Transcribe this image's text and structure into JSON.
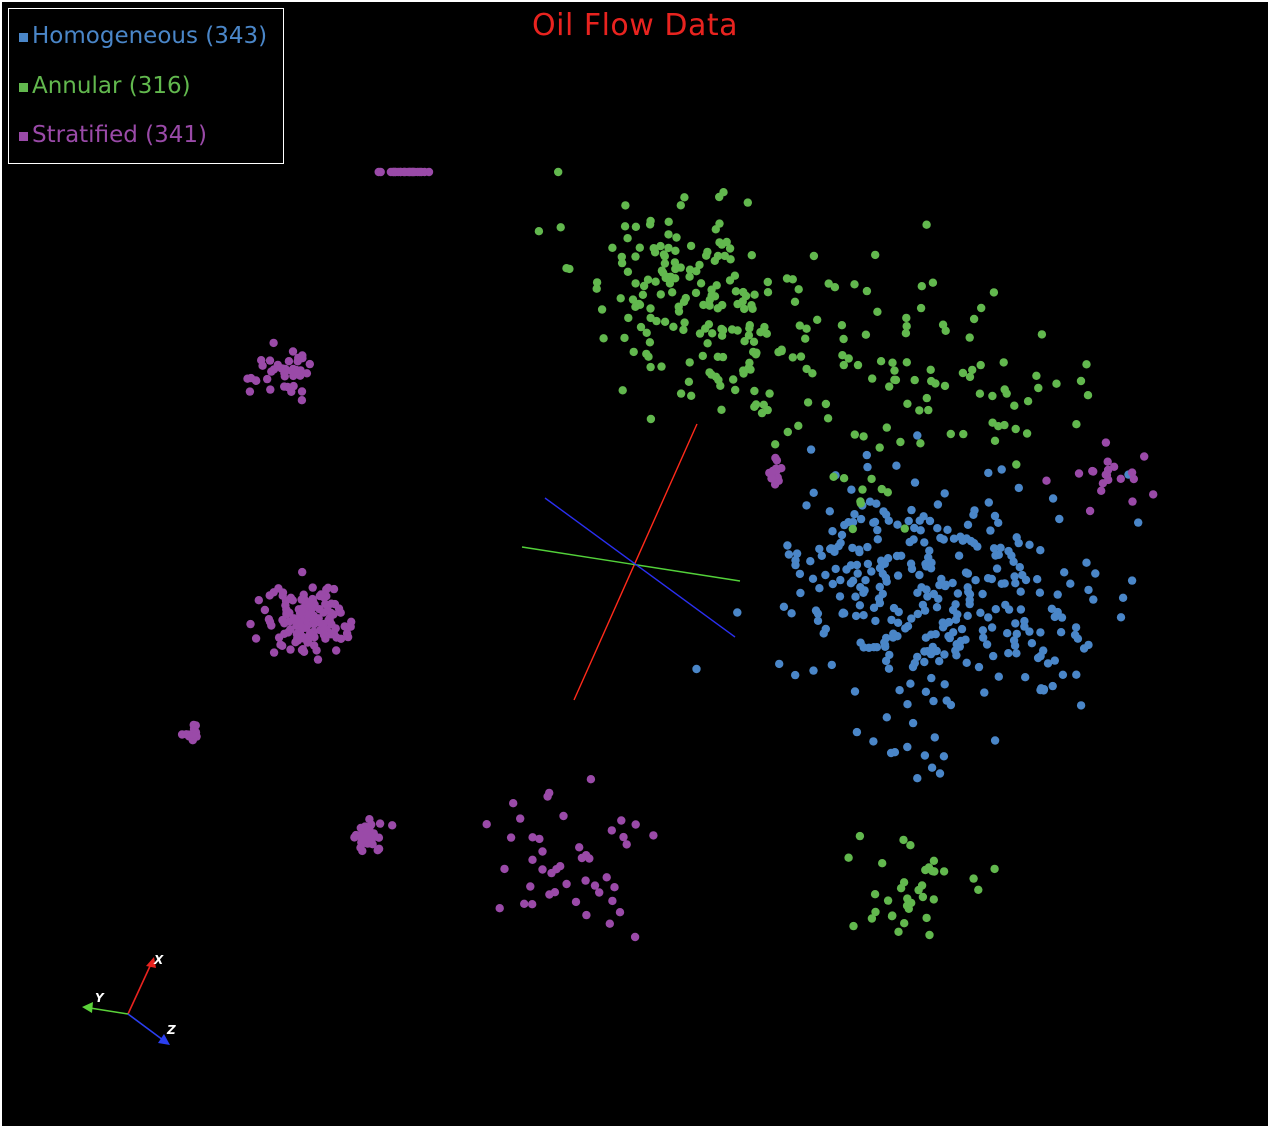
{
  "chart_data": {
    "type": "scatter",
    "title": "Oil Flow Data",
    "projection": "3d",
    "background": "#000000",
    "title_color": "#e8231f",
    "legend_placement": "top-left",
    "orientation_axes": {
      "labels": [
        "X",
        "Y",
        "Z"
      ],
      "colors": [
        "#e8231f",
        "#5bd23a",
        "#2b3ff0"
      ]
    },
    "center_axes_colors": [
      "#ff2a1a",
      "#53d13a",
      "#2a2ff0"
    ],
    "series": [
      {
        "name": "Homogeneous",
        "count": 343,
        "legend_label": "Homogeneous (343)",
        "color": "#4a86c8",
        "clusters": [
          {
            "x": 0.74,
            "y": 0.53,
            "spread": 0.055,
            "n": 260
          },
          {
            "x": 0.67,
            "y": 0.5,
            "spread": 0.03,
            "n": 50
          },
          {
            "x": 0.83,
            "y": 0.54,
            "spread": 0.03,
            "n": 25
          },
          {
            "x": 0.72,
            "y": 0.67,
            "spread": 0.02,
            "n": 8
          }
        ]
      },
      {
        "name": "Annular",
        "count": 316,
        "legend_label": "Annular (316)",
        "color": "#62b84e",
        "clusters": [
          {
            "x": 0.53,
            "y": 0.24,
            "spread": 0.04,
            "n": 110
          },
          {
            "x": 0.59,
            "y": 0.31,
            "spread": 0.035,
            "n": 80
          },
          {
            "x": 0.7,
            "y": 0.31,
            "spread": 0.05,
            "n": 60
          },
          {
            "x": 0.8,
            "y": 0.35,
            "spread": 0.03,
            "n": 22
          },
          {
            "x": 0.72,
            "y": 0.79,
            "spread": 0.03,
            "n": 35
          },
          {
            "x": 0.69,
            "y": 0.45,
            "spread": 0.02,
            "n": 9
          }
        ]
      },
      {
        "name": "Stratified",
        "count": 341,
        "legend_label": "Stratified (341)",
        "color": "#9a4aa8",
        "clusters": [
          {
            "x": 0.24,
            "y": 0.55,
            "spread": 0.015,
            "n": 150
          },
          {
            "x": 0.22,
            "y": 0.33,
            "spread": 0.012,
            "n": 40
          },
          {
            "x": 0.32,
            "y": 0.1,
            "spread": 0.01,
            "n": 25
          },
          {
            "x": 0.29,
            "y": 0.74,
            "spread": 0.008,
            "n": 35
          },
          {
            "x": 0.45,
            "y": 0.77,
            "spread": 0.03,
            "n": 45
          },
          {
            "x": 0.15,
            "y": 0.65,
            "spread": 0.004,
            "n": 12
          },
          {
            "x": 0.87,
            "y": 0.42,
            "spread": 0.015,
            "n": 20
          },
          {
            "x": 0.61,
            "y": 0.42,
            "spread": 0.006,
            "n": 14
          }
        ]
      }
    ]
  }
}
